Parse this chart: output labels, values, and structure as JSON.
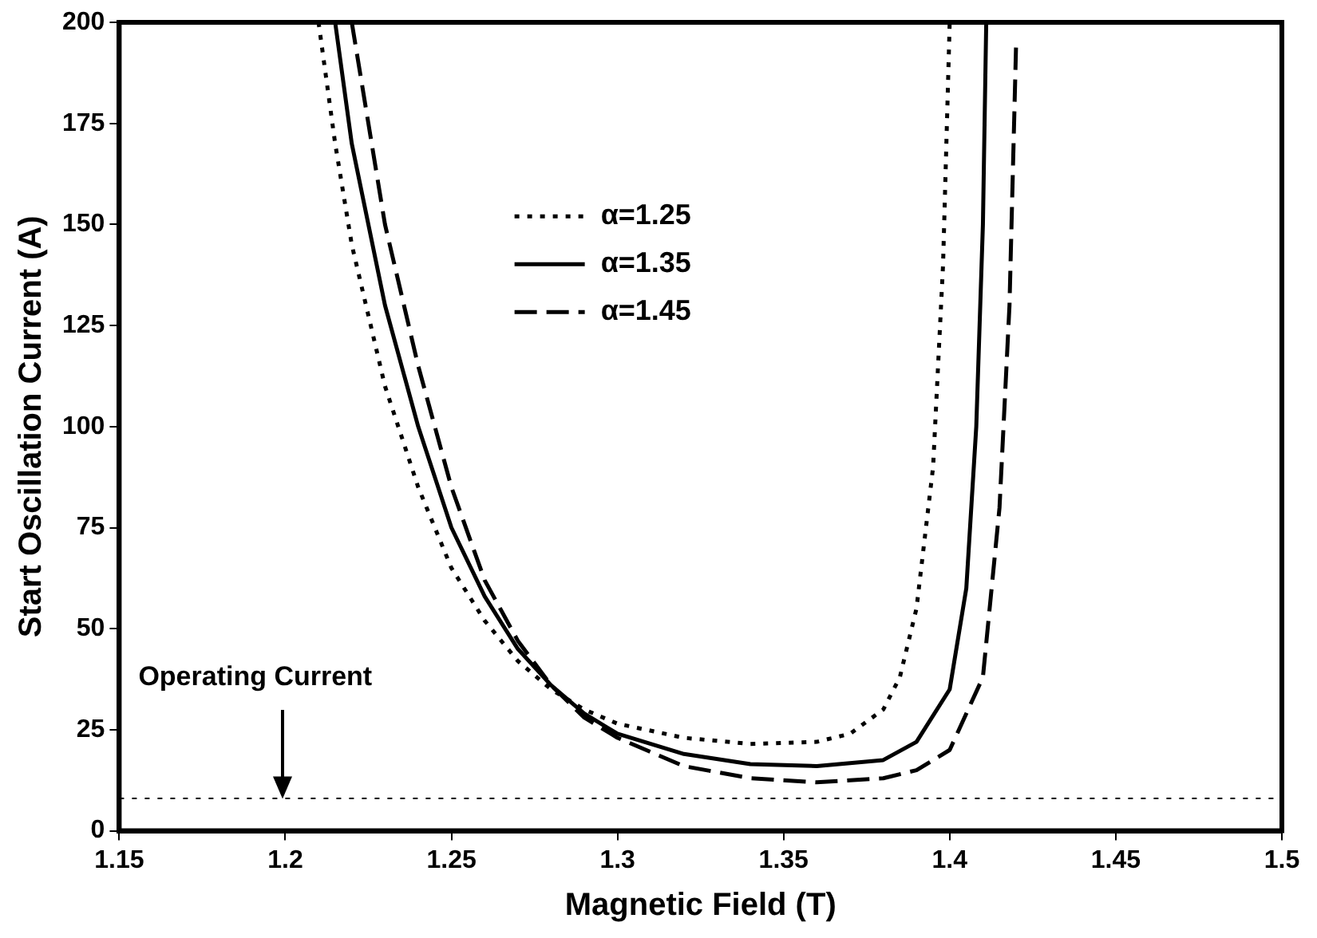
{
  "chart_data": {
    "type": "line",
    "xlabel": "Magnetic Field (T)",
    "ylabel": "Start Oscillation Current (A)",
    "xlim": [
      1.15,
      1.5
    ],
    "xticks": [
      1.15,
      1.2,
      1.25,
      1.3,
      1.35,
      1.4,
      1.45,
      1.5
    ],
    "ylim": [
      0,
      200
    ],
    "yticks": [
      0,
      25,
      50,
      75,
      100,
      125,
      150,
      175,
      200
    ],
    "grid": false,
    "legend": "top center",
    "marker": "none",
    "series": [
      {
        "name": "α=1.25",
        "color": "#000000",
        "line_style": "dotted",
        "x": [
          1.21,
          1.215,
          1.22,
          1.23,
          1.24,
          1.25,
          1.26,
          1.27,
          1.28,
          1.29,
          1.3,
          1.32,
          1.34,
          1.36,
          1.37,
          1.38,
          1.385,
          1.39,
          1.395,
          1.398,
          1.4
        ],
        "values": [
          200,
          170,
          145,
          110,
          85,
          65,
          52,
          42,
          35,
          30,
          26.5,
          23,
          21.5,
          22,
          24,
          30,
          38,
          55,
          90,
          140,
          200
        ]
      },
      {
        "name": "α=1.35",
        "color": "#000000",
        "line_style": "solid",
        "x": [
          1.215,
          1.22,
          1.23,
          1.24,
          1.25,
          1.26,
          1.27,
          1.28,
          1.29,
          1.3,
          1.32,
          1.34,
          1.36,
          1.38,
          1.39,
          1.4,
          1.405,
          1.408,
          1.41,
          1.411
        ],
        "values": [
          200,
          170,
          130,
          100,
          75,
          58,
          45,
          36,
          29,
          24,
          19,
          16.5,
          16,
          17.5,
          22,
          35,
          60,
          100,
          150,
          200
        ]
      },
      {
        "name": "α=1.45",
        "color": "#000000",
        "line_style": "dashed",
        "x": [
          1.22,
          1.225,
          1.23,
          1.24,
          1.25,
          1.26,
          1.27,
          1.28,
          1.29,
          1.3,
          1.32,
          1.34,
          1.36,
          1.38,
          1.39,
          1.4,
          1.41,
          1.415,
          1.418,
          1.42
        ],
        "values": [
          200,
          175,
          150,
          115,
          85,
          62,
          47,
          36,
          28,
          23,
          16,
          13,
          12,
          13,
          15,
          20,
          38,
          80,
          130,
          195
        ]
      }
    ],
    "ref_lines": [
      {
        "axis": "y",
        "value": 8,
        "line_style": "dotted",
        "color": "#000000"
      }
    ],
    "annotations": [
      "Operating Current"
    ]
  }
}
